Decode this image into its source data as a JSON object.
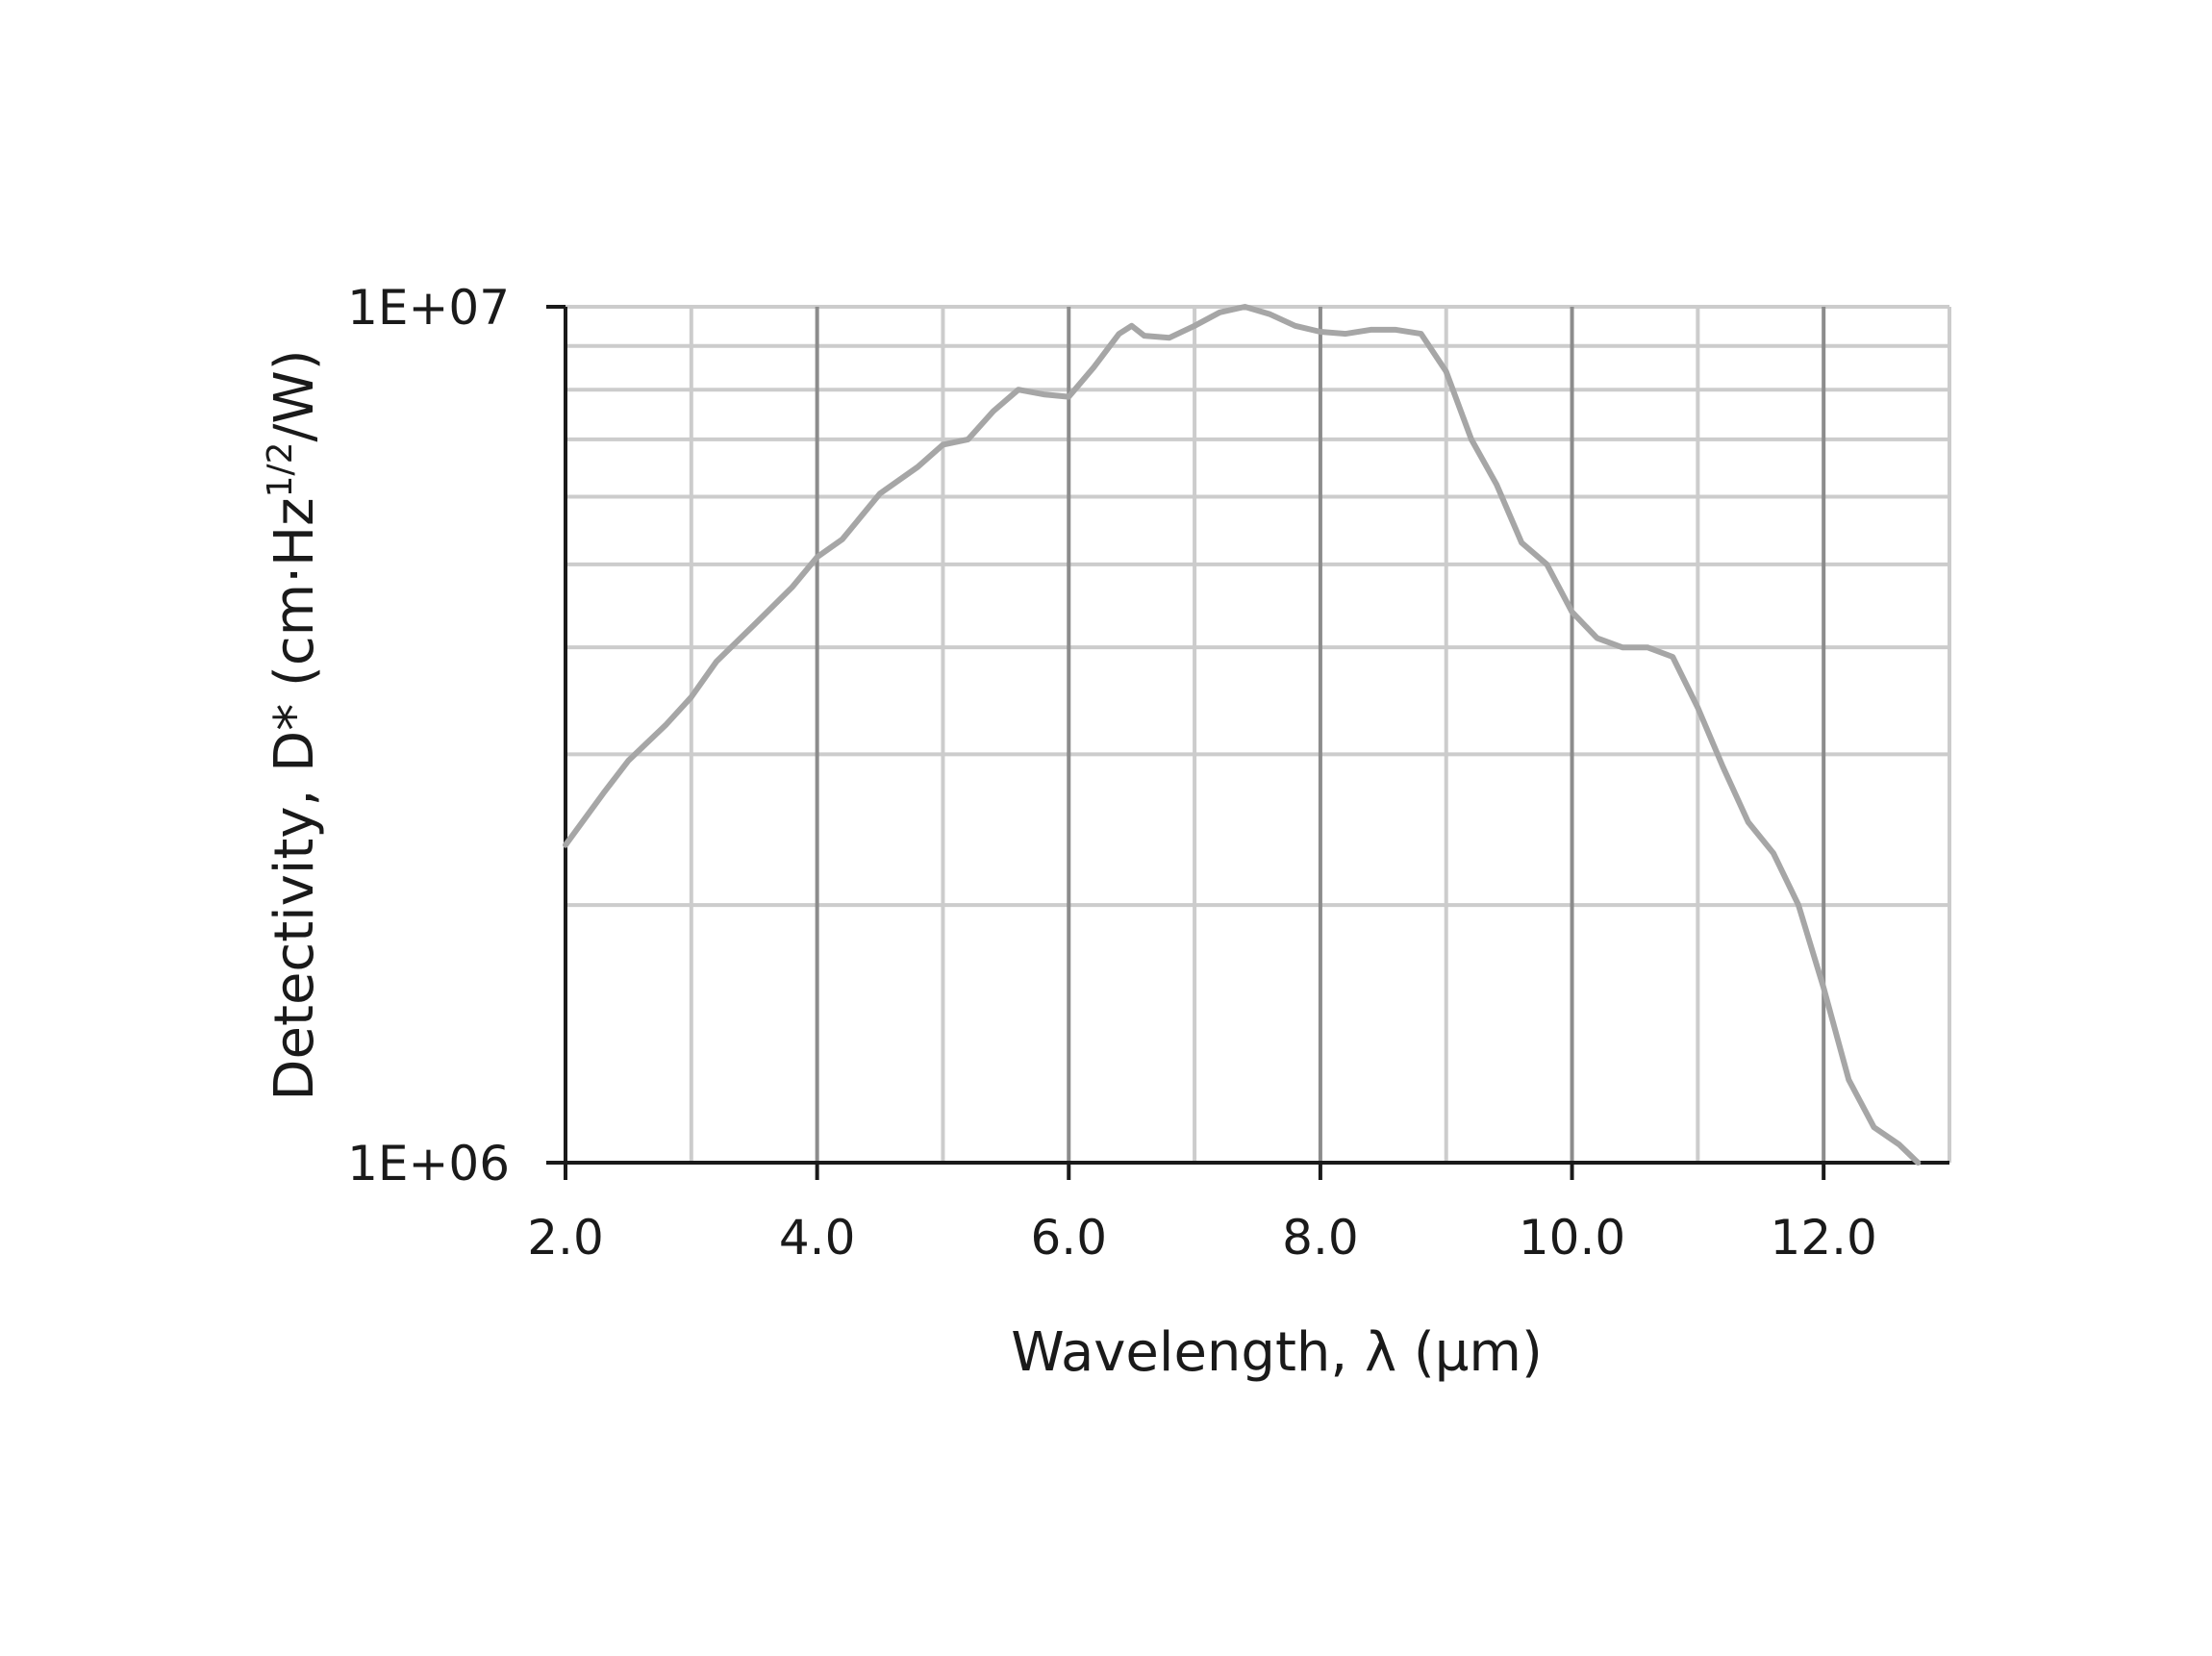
{
  "chart_data": {
    "type": "line",
    "title": "",
    "xlabel": "Wavelength, λ (µm)",
    "ylabel_main": "Detectivity, D* (cm·Hz",
    "ylabel_sup": "1/2",
    "ylabel_tail": "/W)",
    "xlim": [
      2.0,
      13.0
    ],
    "ylim": [
      1000000,
      10000000
    ],
    "yscale": "log",
    "grid": true,
    "x_ticks": [
      2.0,
      4.0,
      6.0,
      8.0,
      10.0,
      12.0
    ],
    "x_tick_labels": [
      "2.0",
      "4.0",
      "6.0",
      "8.0",
      "10.0",
      "12.0"
    ],
    "y_ticks": [
      1000000,
      10000000
    ],
    "y_tick_labels": [
      "1E+06",
      "1E+07"
    ],
    "line_color": "#a6a6a6",
    "series": [
      {
        "x": [
          2.0,
          2.3,
          2.5,
          2.8,
          3.0,
          3.2,
          3.5,
          3.8,
          4.0,
          4.2,
          4.5,
          4.8,
          5.0,
          5.2,
          5.4,
          5.6,
          5.8,
          6.0,
          6.2,
          6.4,
          6.5,
          6.6,
          6.8,
          7.0,
          7.2,
          7.4,
          7.6,
          7.8,
          8.0,
          8.2,
          8.4,
          8.6,
          8.8,
          9.0,
          9.2,
          9.4,
          9.6,
          9.8,
          10.0,
          10.2,
          10.4,
          10.6,
          10.8,
          11.0,
          11.2,
          11.4,
          11.6,
          11.8,
          12.0,
          12.2,
          12.4,
          12.6,
          12.75
        ],
        "y": [
          2350000,
          2700000,
          2950000,
          3250000,
          3500000,
          3850000,
          4250000,
          4700000,
          5100000,
          5350000,
          6050000,
          6500000,
          6900000,
          7000000,
          7550000,
          8000000,
          7900000,
          7850000,
          8500000,
          9300000,
          9500000,
          9250000,
          9200000,
          9500000,
          9850000,
          10000000,
          9800000,
          9500000,
          9350000,
          9300000,
          9400000,
          9400000,
          9300000,
          8400000,
          7000000,
          6200000,
          5300000,
          5000000,
          4400000,
          4100000,
          4000000,
          4000000,
          3900000,
          3400000,
          2900000,
          2500000,
          2300000,
          2000000,
          1600000,
          1250000,
          1100000,
          1050000,
          1000000
        ]
      }
    ]
  }
}
